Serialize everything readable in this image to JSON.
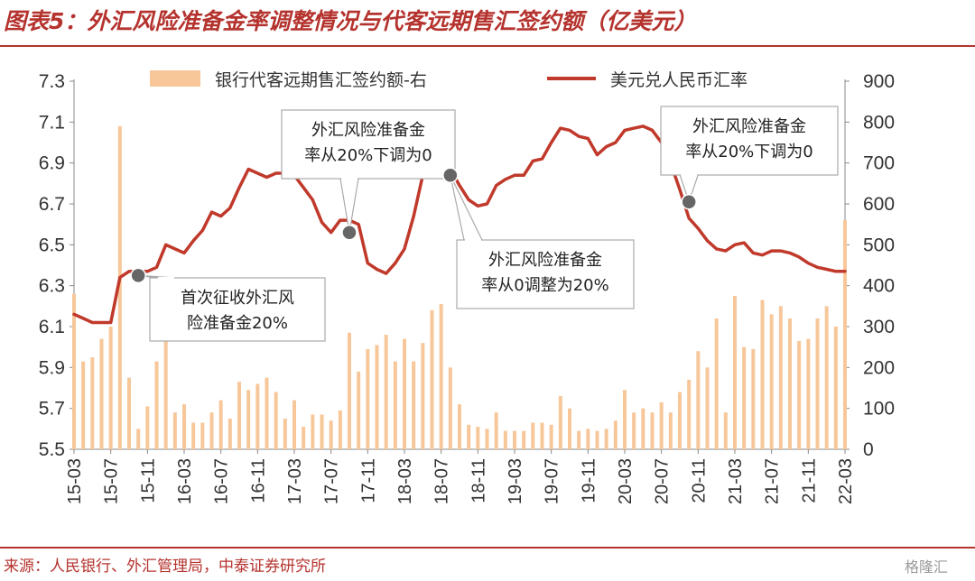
{
  "title": "图表5：外汇风险准备金率调整情况与代客远期售汇签约额（亿美元）",
  "source": "来源：人民银行、外汇管理局，中泰证券研究所",
  "watermark": "格隆汇",
  "colors": {
    "line": "#c0392b",
    "bar": "#f7c79a",
    "accent": "#b5332e",
    "marker": "#666666"
  },
  "chart_data": {
    "type": "bar+line",
    "x_tick_labels": [
      "15-03",
      "15-07",
      "15-11",
      "16-03",
      "16-07",
      "16-11",
      "17-03",
      "17-07",
      "17-11",
      "18-03",
      "18-07",
      "18-11",
      "19-03",
      "19-07",
      "19-11",
      "20-03",
      "20-07",
      "20-11",
      "21-03",
      "21-07",
      "21-11",
      "22-03"
    ],
    "y_left": {
      "ticks": [
        "5.5",
        "5.7",
        "5.9",
        "6.1",
        "6.3",
        "6.5",
        "6.7",
        "6.9",
        "7.1",
        "7.3"
      ],
      "range": [
        5.5,
        7.3
      ]
    },
    "y_right": {
      "ticks": [
        "0",
        "100",
        "200",
        "300",
        "400",
        "500",
        "600",
        "700",
        "800",
        "900"
      ],
      "range": [
        0,
        900
      ]
    },
    "legend": {
      "bar_label": "银行代客远期售汇签约额-右",
      "line_label": "美元兑人民币汇率"
    },
    "series_bar": {
      "name": "银行代客远期售汇签约额-右",
      "axis": "right",
      "values": [
        380,
        215,
        225,
        270,
        300,
        790,
        175,
        50,
        105,
        215,
        285,
        90,
        110,
        65,
        65,
        90,
        120,
        75,
        165,
        145,
        160,
        175,
        140,
        75,
        120,
        55,
        85,
        85,
        70,
        95,
        285,
        190,
        245,
        255,
        280,
        215,
        270,
        215,
        260,
        340,
        355,
        200,
        110,
        60,
        55,
        50,
        90,
        45,
        45,
        45,
        65,
        65,
        60,
        130,
        100,
        45,
        50,
        45,
        50,
        70,
        145,
        90,
        100,
        90,
        115,
        90,
        140,
        170,
        240,
        200,
        320,
        90,
        375,
        250,
        245,
        365,
        330,
        350,
        320,
        265,
        270,
        320,
        350,
        300,
        560
      ]
    },
    "series_line": {
      "name": "美元兑人民币汇率",
      "axis": "left",
      "values": [
        6.16,
        6.14,
        6.12,
        6.12,
        6.12,
        6.34,
        6.37,
        6.37,
        6.37,
        6.39,
        6.5,
        6.48,
        6.46,
        6.52,
        6.57,
        6.66,
        6.64,
        6.68,
        6.78,
        6.87,
        6.85,
        6.83,
        6.85,
        6.85,
        6.84,
        6.78,
        6.72,
        6.61,
        6.56,
        6.62,
        6.62,
        6.6,
        6.41,
        6.38,
        6.36,
        6.41,
        6.48,
        6.64,
        6.84,
        6.91,
        6.92,
        6.87,
        6.79,
        6.72,
        6.69,
        6.7,
        6.79,
        6.82,
        6.84,
        6.84,
        6.91,
        6.92,
        7.0,
        7.07,
        7.06,
        7.03,
        7.02,
        6.94,
        6.98,
        7.0,
        7.06,
        7.07,
        7.08,
        7.06,
        7.0,
        6.9,
        6.77,
        6.63,
        6.58,
        6.52,
        6.48,
        6.47,
        6.5,
        6.51,
        6.46,
        6.45,
        6.47,
        6.47,
        6.46,
        6.44,
        6.41,
        6.39,
        6.38,
        6.37,
        6.37
      ]
    },
    "annotations": [
      {
        "lines": [
          "首次征收外汇风",
          "险准备金20%"
        ],
        "x_label": "15-10",
        "y": 6.35
      },
      {
        "lines": [
          "外汇风险准备金",
          "率从20%下调为0"
        ],
        "x_label": "17-09",
        "y": 6.56
      },
      {
        "lines": [
          "外汇风险准备金",
          "率从0调整为20%"
        ],
        "x_label": "18-08",
        "y": 6.84
      },
      {
        "lines": [
          "外汇风险准备金",
          "率从20%下调为0"
        ],
        "x_label": "20-10",
        "y": 6.71
      }
    ]
  }
}
